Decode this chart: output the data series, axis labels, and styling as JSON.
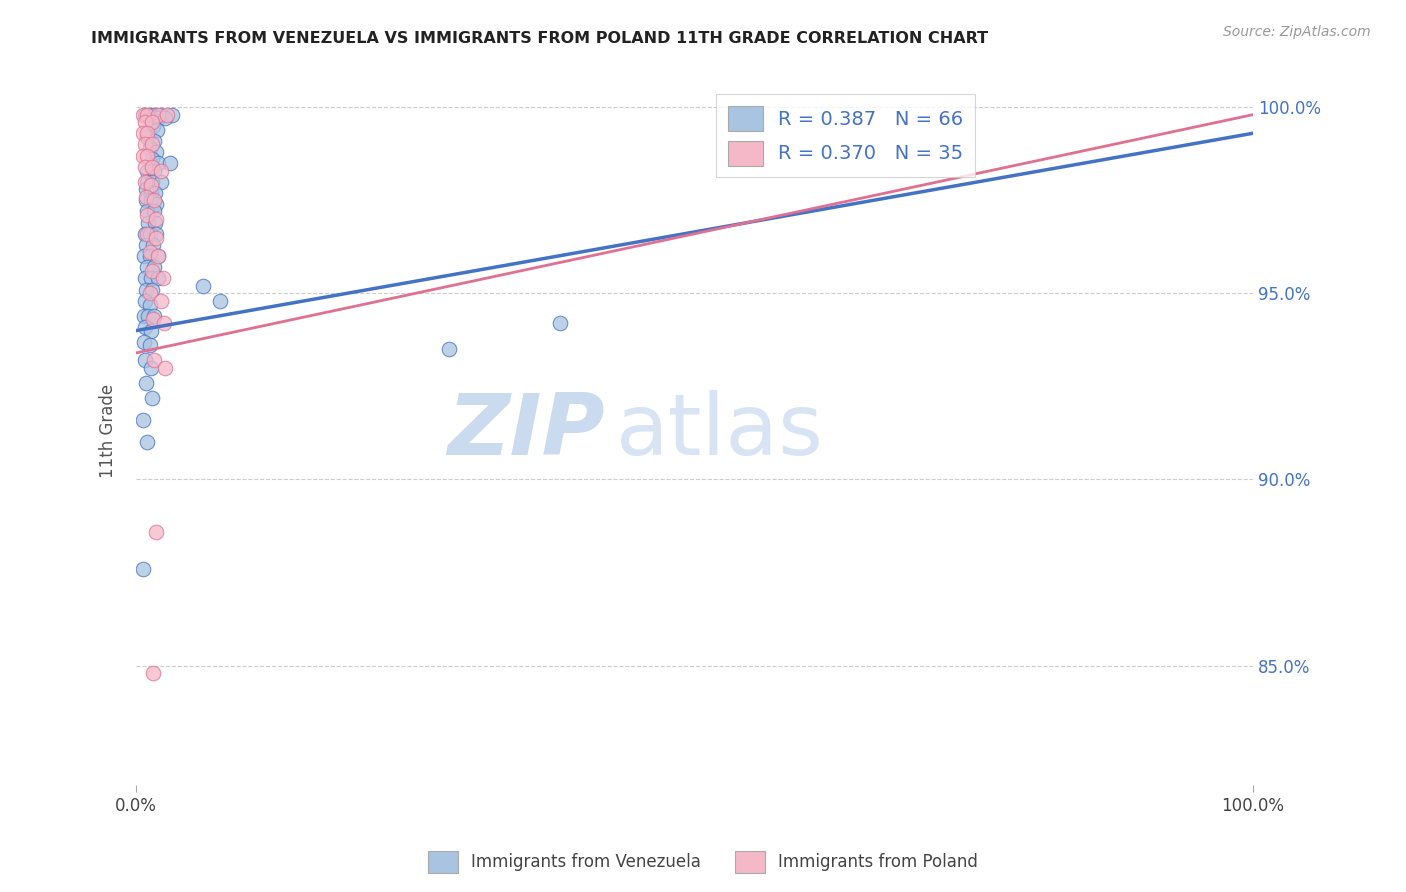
{
  "title": "IMMIGRANTS FROM VENEZUELA VS IMMIGRANTS FROM POLAND 11TH GRADE CORRELATION CHART",
  "source": "Source: ZipAtlas.com",
  "ylabel": "11th Grade",
  "xlim": [
    0.0,
    1.0
  ],
  "ylim": [
    0.818,
    1.008
  ],
  "xtick_labels": [
    "0.0%",
    "100.0%"
  ],
  "xtick_positions": [
    0.0,
    1.0
  ],
  "ytick_labels": [
    "85.0%",
    "90.0%",
    "95.0%",
    "100.0%"
  ],
  "ytick_positions": [
    0.85,
    0.9,
    0.95,
    1.0
  ],
  "legend_r1": "R = 0.387   N = 66",
  "legend_r2": "R = 0.370   N = 35",
  "color_venezuela": "#a8c4e0",
  "color_poland": "#f4b8c8",
  "color_line_venezuela": "#4472c4",
  "color_line_poland": "#e07090",
  "color_right_axis": "#4472c4",
  "watermark_zip": "ZIP",
  "watermark_atlas": "atlas",
  "trendline_venezuela": [
    [
      0.0,
      0.94
    ],
    [
      1.0,
      0.993
    ]
  ],
  "trendline_poland": [
    [
      0.0,
      0.934
    ],
    [
      1.0,
      0.998
    ]
  ],
  "scatter_venezuela": [
    [
      0.008,
      0.998
    ],
    [
      0.012,
      0.998
    ],
    [
      0.016,
      0.998
    ],
    [
      0.022,
      0.998
    ],
    [
      0.032,
      0.998
    ],
    [
      0.02,
      0.997
    ],
    [
      0.026,
      0.997
    ],
    [
      0.015,
      0.995
    ],
    [
      0.019,
      0.994
    ],
    [
      0.01,
      0.992
    ],
    [
      0.016,
      0.991
    ],
    [
      0.012,
      0.989
    ],
    [
      0.018,
      0.988
    ],
    [
      0.014,
      0.986
    ],
    [
      0.02,
      0.985
    ],
    [
      0.03,
      0.985
    ],
    [
      0.01,
      0.983
    ],
    [
      0.016,
      0.983
    ],
    [
      0.01,
      0.98
    ],
    [
      0.014,
      0.98
    ],
    [
      0.022,
      0.98
    ],
    [
      0.009,
      0.978
    ],
    [
      0.013,
      0.977
    ],
    [
      0.017,
      0.977
    ],
    [
      0.009,
      0.975
    ],
    [
      0.013,
      0.975
    ],
    [
      0.018,
      0.974
    ],
    [
      0.01,
      0.972
    ],
    [
      0.016,
      0.972
    ],
    [
      0.011,
      0.969
    ],
    [
      0.017,
      0.969
    ],
    [
      0.008,
      0.966
    ],
    [
      0.012,
      0.966
    ],
    [
      0.018,
      0.966
    ],
    [
      0.009,
      0.963
    ],
    [
      0.015,
      0.963
    ],
    [
      0.007,
      0.96
    ],
    [
      0.012,
      0.96
    ],
    [
      0.02,
      0.96
    ],
    [
      0.01,
      0.957
    ],
    [
      0.016,
      0.957
    ],
    [
      0.008,
      0.954
    ],
    [
      0.013,
      0.954
    ],
    [
      0.02,
      0.954
    ],
    [
      0.009,
      0.951
    ],
    [
      0.014,
      0.951
    ],
    [
      0.008,
      0.948
    ],
    [
      0.012,
      0.947
    ],
    [
      0.007,
      0.944
    ],
    [
      0.011,
      0.944
    ],
    [
      0.016,
      0.944
    ],
    [
      0.008,
      0.941
    ],
    [
      0.013,
      0.94
    ],
    [
      0.007,
      0.937
    ],
    [
      0.012,
      0.936
    ],
    [
      0.008,
      0.932
    ],
    [
      0.013,
      0.93
    ],
    [
      0.009,
      0.926
    ],
    [
      0.014,
      0.922
    ],
    [
      0.006,
      0.916
    ],
    [
      0.01,
      0.91
    ],
    [
      0.006,
      0.876
    ],
    [
      0.06,
      0.952
    ],
    [
      0.075,
      0.948
    ],
    [
      0.28,
      0.935
    ],
    [
      0.38,
      0.942
    ]
  ],
  "scatter_poland": [
    [
      0.006,
      0.998
    ],
    [
      0.01,
      0.998
    ],
    [
      0.02,
      0.998
    ],
    [
      0.028,
      0.998
    ],
    [
      0.008,
      0.996
    ],
    [
      0.014,
      0.996
    ],
    [
      0.006,
      0.993
    ],
    [
      0.01,
      0.993
    ],
    [
      0.008,
      0.99
    ],
    [
      0.014,
      0.99
    ],
    [
      0.006,
      0.987
    ],
    [
      0.01,
      0.987
    ],
    [
      0.008,
      0.984
    ],
    [
      0.014,
      0.984
    ],
    [
      0.022,
      0.983
    ],
    [
      0.008,
      0.98
    ],
    [
      0.013,
      0.979
    ],
    [
      0.009,
      0.976
    ],
    [
      0.016,
      0.975
    ],
    [
      0.01,
      0.971
    ],
    [
      0.018,
      0.97
    ],
    [
      0.01,
      0.966
    ],
    [
      0.018,
      0.965
    ],
    [
      0.012,
      0.961
    ],
    [
      0.02,
      0.96
    ],
    [
      0.014,
      0.956
    ],
    [
      0.024,
      0.954
    ],
    [
      0.012,
      0.95
    ],
    [
      0.022,
      0.948
    ],
    [
      0.015,
      0.943
    ],
    [
      0.025,
      0.942
    ],
    [
      0.016,
      0.932
    ],
    [
      0.026,
      0.93
    ],
    [
      0.018,
      0.886
    ],
    [
      0.015,
      0.848
    ]
  ]
}
